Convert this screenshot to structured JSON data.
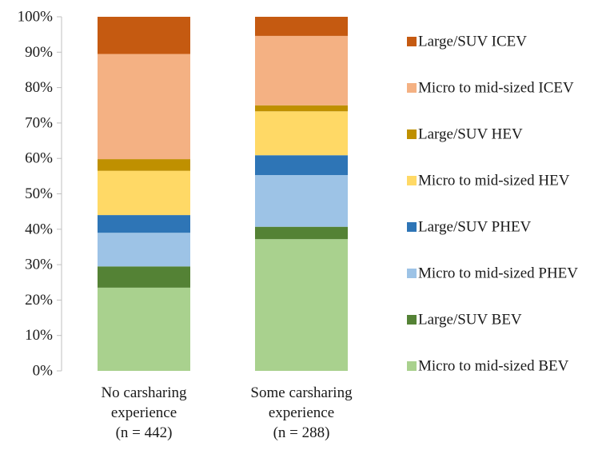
{
  "chart_data": {
    "type": "bar",
    "stacked": true,
    "categories": [
      [
        "No carsharing",
        "experience",
        "(n = 442)"
      ],
      [
        "Some carsharing",
        "experience",
        "(n = 288)"
      ]
    ],
    "ylim": [
      0,
      100
    ],
    "yticks": [
      0,
      10,
      20,
      30,
      40,
      50,
      60,
      70,
      80,
      90,
      100
    ],
    "ytick_labels": [
      "0%",
      "10%",
      "20%",
      "30%",
      "40%",
      "50%",
      "60%",
      "70%",
      "80%",
      "90%",
      "100%"
    ],
    "grid": false,
    "legend_position": "right",
    "series": [
      {
        "name": "Micro to mid-sized BEV",
        "color": "#a9d18e",
        "values": [
          23.5,
          37.2
        ]
      },
      {
        "name": "Large/SUV BEV",
        "color": "#548235",
        "values": [
          6.0,
          3.5
        ]
      },
      {
        "name": "Micro to mid-sized PHEV",
        "color": "#9dc3e6",
        "values": [
          9.5,
          14.6
        ]
      },
      {
        "name": "Large/SUV PHEV",
        "color": "#2e75b6",
        "values": [
          5.0,
          5.6
        ]
      },
      {
        "name": "Micro to mid-sized HEV",
        "color": "#ffd966",
        "values": [
          12.5,
          12.4
        ]
      },
      {
        "name": "Large/SUV HEV",
        "color": "#bf9000",
        "values": [
          3.3,
          1.7
        ]
      },
      {
        "name": "Micro to mid-sized ICEV",
        "color": "#f4b183",
        "values": [
          29.7,
          19.6
        ]
      },
      {
        "name": "Large/SUV ICEV",
        "color": "#c55a11",
        "values": [
          10.5,
          5.4
        ]
      }
    ]
  }
}
